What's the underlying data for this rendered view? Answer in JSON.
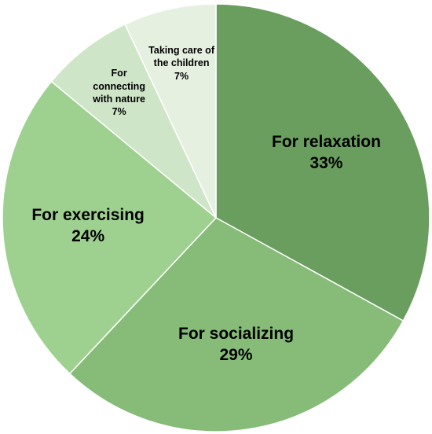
{
  "chart_data": {
    "type": "pie",
    "categories": [
      "For relaxation",
      "For socializing",
      "For exercising",
      "For connecting with nature",
      "Taking care of the children"
    ],
    "values": [
      33,
      29,
      24,
      7,
      7
    ],
    "value_labels": [
      "33%",
      "29%",
      "24%",
      "7%",
      "7%"
    ],
    "colors": [
      "#6a9e5e",
      "#86bb78",
      "#9ed18f",
      "#cfe5c8",
      "#e6f0e1"
    ]
  }
}
